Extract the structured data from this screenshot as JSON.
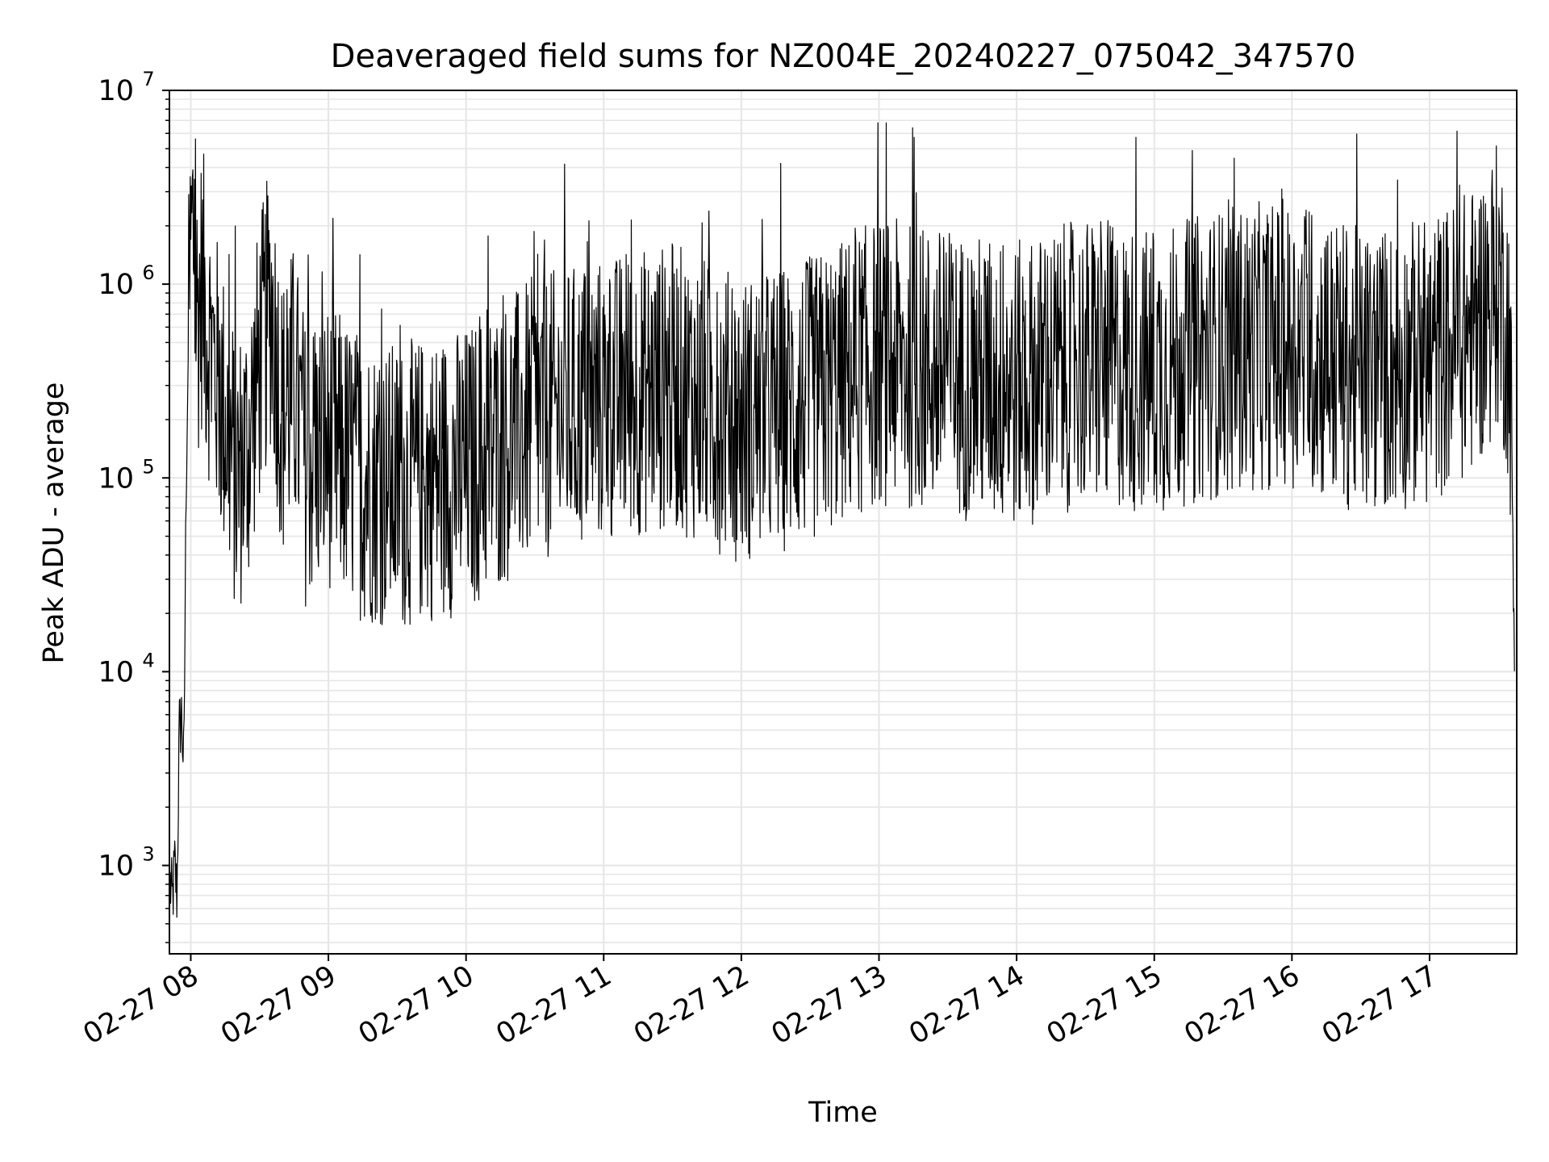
{
  "chart_data": {
    "type": "line",
    "title": "Deaveraged field sums for NZ004E_20240227_075042_347570",
    "xlabel": "Time",
    "ylabel": "Peak ADU - average",
    "yscale": "log",
    "ylim": [
      350,
      10000000
    ],
    "xlim": [
      "2024-02-27 07:50:42",
      "2024-02-27 17:38:00"
    ],
    "grid": true,
    "grid_color": "#e6e6e6",
    "line_color": "#000000",
    "x_tick_labels": [
      "02-27 08",
      "02-27 09",
      "02-27 10",
      "02-27 11",
      "02-27 12",
      "02-27 13",
      "02-27 14",
      "02-27 15",
      "02-27 16",
      "02-27 17"
    ],
    "y_tick_labels": [
      {
        "base": "10",
        "exp": "3"
      },
      {
        "base": "10",
        "exp": "4"
      },
      {
        "base": "10",
        "exp": "5"
      },
      {
        "base": "10",
        "exp": "6"
      },
      {
        "base": "10",
        "exp": "7"
      }
    ],
    "series": [
      {
        "x": [
          "2024-02-27 07:51",
          "2024-02-27 07:52",
          "2024-02-27 07:53",
          "2024-02-27 07:54",
          "2024-02-27 07:55",
          "2024-02-27 07:56",
          "2024-02-27 07:57",
          "2024-02-27 07:58",
          "2024-02-27 07:59",
          "2024-02-27 08:00",
          "2024-02-27 08:01",
          "2024-02-27 08:02",
          "2024-02-27 08:03",
          "2024-02-27 08:05",
          "2024-02-27 08:07",
          "2024-02-27 08:10",
          "2024-02-27 08:15",
          "2024-02-27 08:20",
          "2024-02-27 08:25",
          "2024-02-27 08:30",
          "2024-02-27 08:35",
          "2024-02-27 08:40",
          "2024-02-27 08:45",
          "2024-02-27 08:50",
          "2024-02-27 09:00",
          "2024-02-27 09:15",
          "2024-02-27 09:30",
          "2024-02-27 09:45",
          "2024-02-27 10:00",
          "2024-02-27 10:30",
          "2024-02-27 11:00",
          "2024-02-27 11:30",
          "2024-02-27 12:00",
          "2024-02-27 12:30",
          "2024-02-27 13:00",
          "2024-02-27 13:30",
          "2024-02-27 14:00",
          "2024-02-27 14:30",
          "2024-02-27 15:00",
          "2024-02-27 15:30",
          "2024-02-27 16:00",
          "2024-02-27 16:30",
          "2024-02-27 17:00",
          "2024-02-27 17:20",
          "2024-02-27 17:30",
          "2024-02-27 17:35",
          "2024-02-27 17:37"
        ],
        "y": [
          800,
          650,
          1000,
          700,
          5000,
          6000,
          3000,
          100000,
          500000,
          1500000,
          2000000,
          900000,
          700000,
          1000000,
          600000,
          400000,
          200000,
          100000,
          150000,
          400000,
          800000,
          200000,
          300000,
          120000,
          150000,
          100000,
          90000,
          100000,
          110000,
          200000,
          250000,
          300000,
          200000,
          250000,
          400000,
          350000,
          300000,
          400000,
          350000,
          450000,
          500000,
          350000,
          400000,
          600000,
          1000000,
          500000,
          10000
        ]
      }
    ]
  }
}
